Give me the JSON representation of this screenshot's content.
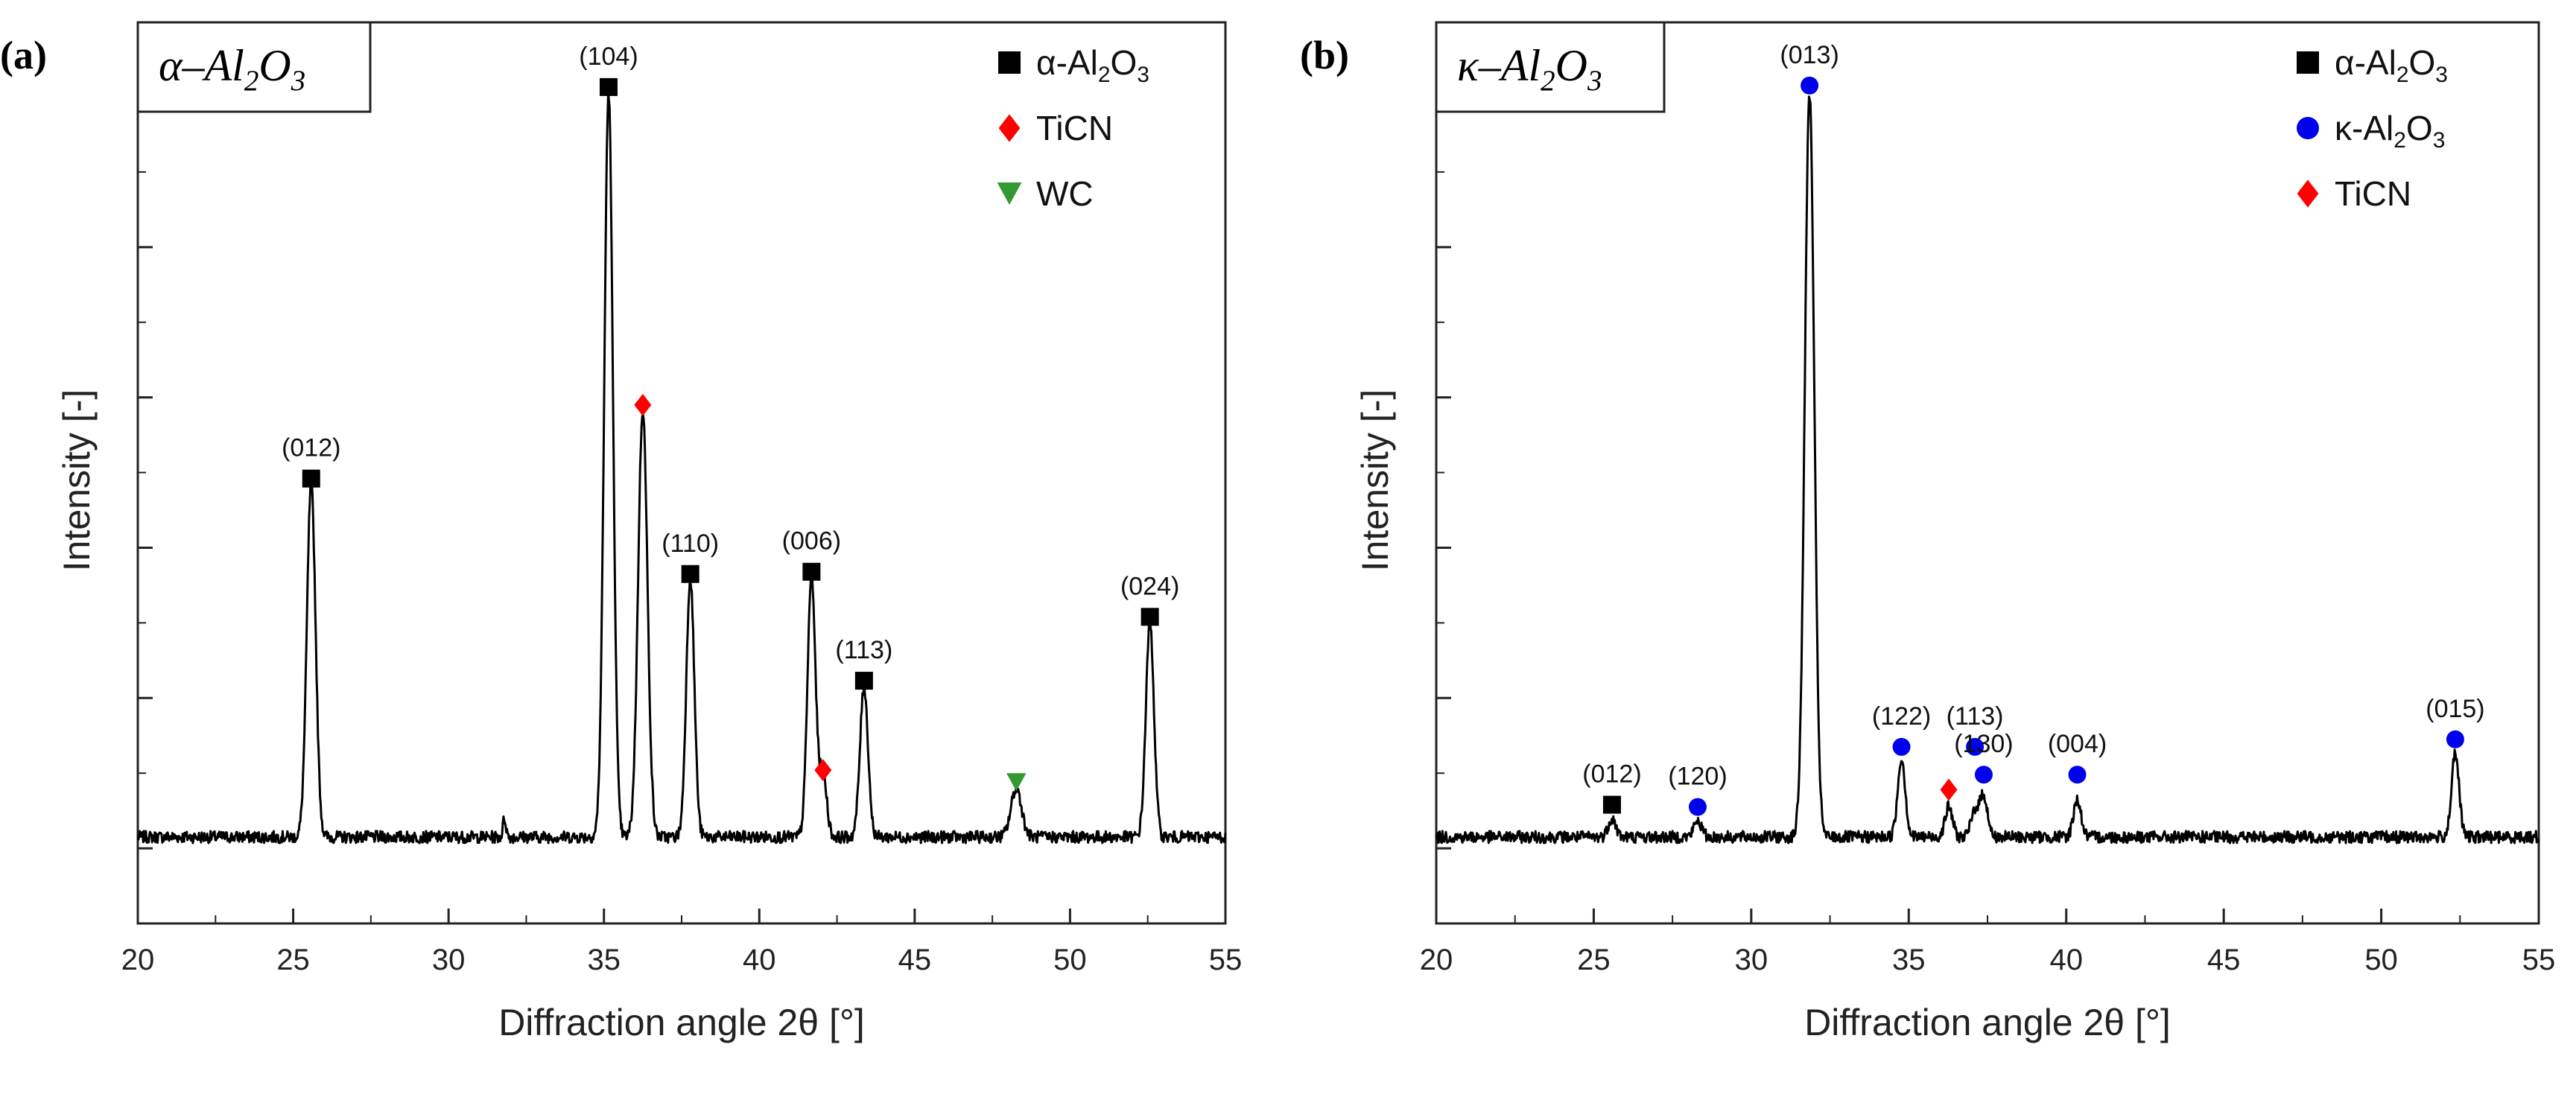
{
  "figure": {
    "background": "#ffffff"
  },
  "chart_data": [
    {
      "type": "line",
      "panel_label": "(a)",
      "title": {
        "prefix": "α–Al",
        "sub1": "2",
        "mid": "O",
        "sub2": "3"
      },
      "xlabel": "Diffraction angle 2θ [°]",
      "ylabel": "Intensity [-]",
      "xlim": [
        20,
        55
      ],
      "ylim": [
        0,
        100
      ],
      "baseline": 1.5,
      "x_ticks": [
        20,
        25,
        30,
        35,
        40,
        45,
        50,
        55
      ],
      "x_tick_labels": [
        "20",
        "25",
        "30",
        "35",
        "40",
        "45",
        "50",
        "55"
      ],
      "y_ticks_major": [
        0,
        20,
        40,
        60,
        80,
        100
      ],
      "y_ticks_minor": [
        10,
        30,
        50,
        70,
        90
      ],
      "peaks": [
        {
          "x": 25.58,
          "h": 47.0,
          "w": 0.14
        },
        {
          "x": 35.15,
          "h": 99.0,
          "w": 0.14
        },
        {
          "x": 36.25,
          "h": 57.0,
          "w": 0.15
        },
        {
          "x": 37.78,
          "h": 34.5,
          "w": 0.13
        },
        {
          "x": 41.68,
          "h": 34.5,
          "w": 0.13
        },
        {
          "x": 42.05,
          "h": 8.5,
          "w": 0.12
        },
        {
          "x": 43.37,
          "h": 20.0,
          "w": 0.13
        },
        {
          "x": 48.27,
          "h": 6.5,
          "w": 0.17
        },
        {
          "x": 52.57,
          "h": 28.5,
          "w": 0.13
        },
        {
          "x": 31.8,
          "h": 2.5,
          "w": 0.05
        }
      ],
      "markers": [
        {
          "x": 25.58,
          "y": 49.2,
          "phase": "α-Al2O3",
          "label": "(012)"
        },
        {
          "x": 35.15,
          "y": 101.3,
          "phase": "α-Al2O3",
          "label": "(104)"
        },
        {
          "x": 36.25,
          "y": 59.0,
          "phase": "TiCN",
          "label": ""
        },
        {
          "x": 37.78,
          "y": 36.5,
          "phase": "α-Al2O3",
          "label": "(110)"
        },
        {
          "x": 41.68,
          "y": 36.8,
          "phase": "α-Al2O3",
          "label": "(006)"
        },
        {
          "x": 42.05,
          "y": 10.4,
          "phase": "TiCN",
          "label": ""
        },
        {
          "x": 43.37,
          "y": 22.3,
          "phase": "α-Al2O3",
          "label": "(113)"
        },
        {
          "x": 48.27,
          "y": 8.8,
          "phase": "WC",
          "label": ""
        },
        {
          "x": 52.57,
          "y": 30.8,
          "phase": "α-Al2O3",
          "label": "(024)"
        }
      ],
      "legend": [
        {
          "symbol": "square",
          "color": "#000000",
          "text": "α-Al",
          "sub1": "2",
          "mid": "O",
          "sub2": "3"
        },
        {
          "symbol": "diamond",
          "color": "#ff0000",
          "text": "TiCN"
        },
        {
          "symbol": "triangle-down",
          "color": "#339933",
          "text": "WC"
        }
      ],
      "legend_position": "top-right"
    },
    {
      "type": "line",
      "panel_label": "(b)",
      "title": {
        "prefix": "κ–Al",
        "sub1": "2",
        "mid": "O",
        "sub2": "3"
      },
      "xlabel": "Diffraction angle 2θ [°]",
      "ylabel": "Intensity [-]",
      "xlim": [
        20,
        55
      ],
      "ylim": [
        0,
        100
      ],
      "baseline": 1.5,
      "x_ticks": [
        20,
        25,
        30,
        35,
        40,
        45,
        50,
        55
      ],
      "x_tick_labels": [
        "20",
        "25",
        "30",
        "35",
        "40",
        "45",
        "50",
        "55"
      ],
      "y_ticks_major": [
        0,
        20,
        40,
        60,
        80,
        100
      ],
      "y_ticks_minor": [
        10,
        30,
        50,
        70,
        90
      ],
      "peaks": [
        {
          "x": 25.58,
          "h": 2.5,
          "w": 0.12
        },
        {
          "x": 28.3,
          "h": 2.2,
          "w": 0.12
        },
        {
          "x": 31.85,
          "h": 99.0,
          "w": 0.15
        },
        {
          "x": 34.77,
          "h": 10.5,
          "w": 0.12
        },
        {
          "x": 36.27,
          "h": 4.0,
          "w": 0.12
        },
        {
          "x": 37.1,
          "h": 3.5,
          "w": 0.12
        },
        {
          "x": 37.38,
          "h": 5.5,
          "w": 0.12
        },
        {
          "x": 40.35,
          "h": 5.0,
          "w": 0.12
        },
        {
          "x": 52.35,
          "h": 11.0,
          "w": 0.12
        }
      ],
      "markers": [
        {
          "x": 25.58,
          "y": 5.8,
          "phase": "α-Al2O3",
          "label": "(012)"
        },
        {
          "x": 28.3,
          "y": 5.5,
          "phase": "κ-Al2O3",
          "label": "(120)"
        },
        {
          "x": 31.85,
          "y": 101.5,
          "phase": "κ-Al2O3",
          "label": "(013)"
        },
        {
          "x": 34.77,
          "y": 13.5,
          "phase": "κ-Al2O3",
          "label": "(122)"
        },
        {
          "x": 36.27,
          "y": 7.8,
          "phase": "TiCN",
          "label": ""
        },
        {
          "x": 37.1,
          "y": 13.5,
          "phase": "κ-Al2O3",
          "label": "(113)"
        },
        {
          "x": 37.38,
          "y": 9.8,
          "phase": "κ-Al2O3",
          "label": "(130)"
        },
        {
          "x": 40.35,
          "y": 9.8,
          "phase": "κ-Al2O3",
          "label": "(004)"
        },
        {
          "x": 52.35,
          "y": 14.5,
          "phase": "κ-Al2O3",
          "label": "(015)"
        }
      ],
      "legend": [
        {
          "symbol": "square",
          "color": "#000000",
          "text": "α-Al",
          "sub1": "2",
          "mid": "O",
          "sub2": "3"
        },
        {
          "symbol": "circle",
          "color": "#0000ee",
          "text": "κ-Al",
          "sub1": "2",
          "mid": "O",
          "sub2": "3"
        },
        {
          "symbol": "diamond",
          "color": "#ff0000",
          "text": "TiCN"
        }
      ],
      "legend_position": "top-right"
    }
  ]
}
